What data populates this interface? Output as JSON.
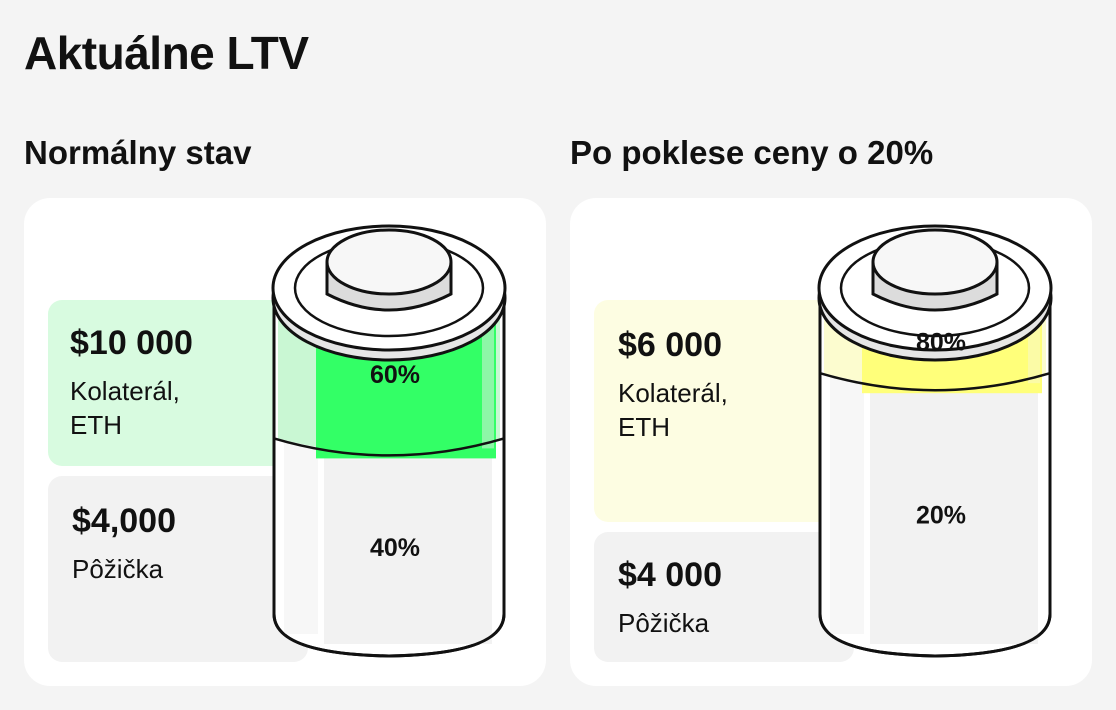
{
  "title": "Aktuálne LTV",
  "panels": [
    {
      "heading": "Normálny stav",
      "collateral": {
        "amount": "$10 000",
        "label_line1": "Kolaterál,",
        "label_line2": "ETH"
      },
      "loan": {
        "amount": "$4,000",
        "label": "Pôžička"
      },
      "battery": {
        "fill_label": "60%",
        "empty_label": "40%",
        "fill_fraction": 0.6,
        "fill_color": "#33ff66",
        "fill_light_color": "#c9f7d3",
        "fill_mid_color": "#8df7a7"
      },
      "collateral_box_color": "#d8fbe0"
    },
    {
      "heading": "Po poklese ceny o 20%",
      "collateral": {
        "amount": "$6 000",
        "label_line1": "Kolaterál,",
        "label_line2": "ETH"
      },
      "loan": {
        "amount": "$4 000",
        "label": "Pôžička"
      },
      "battery": {
        "fill_label": "80%",
        "empty_label": "20%",
        "fill_fraction": 0.8,
        "fill_color": "#ffff7a",
        "fill_light_color": "#fcfccf",
        "fill_mid_color": "#fbfba6"
      },
      "collateral_box_color": "#fdfde2"
    }
  ]
}
